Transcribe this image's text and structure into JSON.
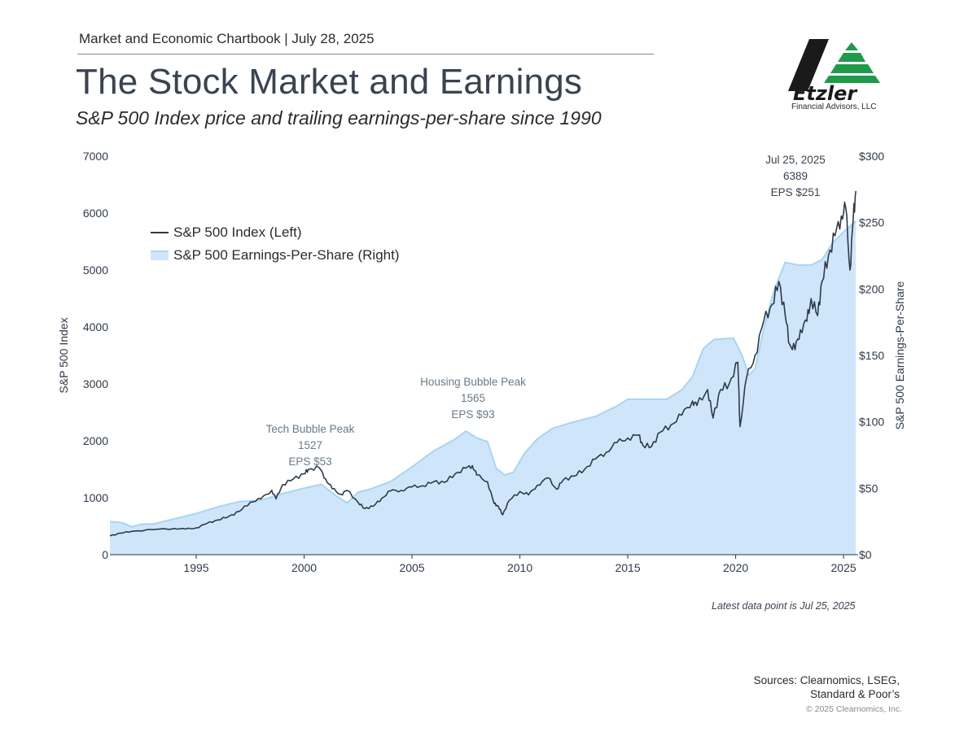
{
  "header": {
    "chartbook": "Market and Economic Chartbook | July 28, 2025",
    "title": "The Stock Market and Earnings",
    "subtitle": "S&P 500 Index price and trailing earnings-per-share since 1990"
  },
  "logo": {
    "name": "Etzler",
    "sub": "Financial Advisors, LLC",
    "colors": {
      "dark": "#1a1a1a",
      "green": "#1e9a4a"
    }
  },
  "footer": {
    "sources_line1": "Sources: Clearnomics, LSEG,",
    "sources_line2": "Standard & Poor’s",
    "copyright": "© 2025 Clearnomics, Inc.",
    "latest": "Latest data point is Jul 25, 2025"
  },
  "chart_data": {
    "type": "line",
    "title": "The Stock Market and Earnings",
    "ylabel_left": "S&P 500 Index",
    "ylabel_right": "S&P 500 Earnings-Per-Share",
    "xlim": [
      1991,
      2025.6
    ],
    "ylim_left": [
      0,
      7000
    ],
    "ylim_right": [
      0,
      300
    ],
    "grid": false,
    "legend_position": "top-left",
    "x_ticks": [
      1995,
      2000,
      2005,
      2010,
      2015,
      2020,
      2025
    ],
    "y_left_ticks": [
      0,
      1000,
      2000,
      3000,
      4000,
      5000,
      6000,
      7000
    ],
    "y_right_ticks": [
      "$0",
      "$50",
      "$100",
      "$150",
      "$200",
      "$250",
      "$300"
    ],
    "colors": {
      "index_line": "#2f3a48",
      "eps_fill": "#cfe6fa",
      "eps_edge": "#a8d4f5",
      "annotation": "#6b7a86"
    },
    "series": [
      {
        "name": "S&P 500 Index (Left)",
        "axis": "left",
        "points": [
          [
            1991.0,
            330
          ],
          [
            1991.5,
            380
          ],
          [
            1992.0,
            410
          ],
          [
            1993.0,
            440
          ],
          [
            1994.0,
            460
          ],
          [
            1994.5,
            450
          ],
          [
            1995.0,
            470
          ],
          [
            1995.5,
            550
          ],
          [
            1996.0,
            610
          ],
          [
            1996.5,
            670
          ],
          [
            1997.0,
            760
          ],
          [
            1997.5,
            920
          ],
          [
            1998.0,
            980
          ],
          [
            1998.5,
            1130
          ],
          [
            1998.7,
            980
          ],
          [
            1999.0,
            1230
          ],
          [
            1999.5,
            1330
          ],
          [
            2000.0,
            1420
          ],
          [
            2000.2,
            1500
          ],
          [
            2000.7,
            1527
          ],
          [
            2001.0,
            1330
          ],
          [
            2001.3,
            1160
          ],
          [
            2001.7,
            1060
          ],
          [
            2002.0,
            1130
          ],
          [
            2002.5,
            920
          ],
          [
            2002.8,
            810
          ],
          [
            2003.2,
            850
          ],
          [
            2003.6,
            990
          ],
          [
            2004.0,
            1120
          ],
          [
            2004.5,
            1130
          ],
          [
            2005.0,
            1190
          ],
          [
            2005.5,
            1210
          ],
          [
            2006.0,
            1280
          ],
          [
            2006.5,
            1270
          ],
          [
            2007.0,
            1420
          ],
          [
            2007.5,
            1520
          ],
          [
            2007.8,
            1565
          ],
          [
            2008.0,
            1400
          ],
          [
            2008.5,
            1280
          ],
          [
            2008.8,
            900
          ],
          [
            2009.0,
            850
          ],
          [
            2009.2,
            700
          ],
          [
            2009.5,
            950
          ],
          [
            2010.0,
            1110
          ],
          [
            2010.4,
            1050
          ],
          [
            2010.8,
            1220
          ],
          [
            2011.3,
            1350
          ],
          [
            2011.7,
            1150
          ],
          [
            2012.0,
            1310
          ],
          [
            2012.5,
            1380
          ],
          [
            2013.0,
            1500
          ],
          [
            2013.5,
            1680
          ],
          [
            2014.0,
            1800
          ],
          [
            2014.5,
            1970
          ],
          [
            2015.0,
            2050
          ],
          [
            2015.5,
            2100
          ],
          [
            2015.7,
            1920
          ],
          [
            2016.1,
            1900
          ],
          [
            2016.5,
            2150
          ],
          [
            2017.0,
            2280
          ],
          [
            2017.5,
            2450
          ],
          [
            2018.0,
            2700
          ],
          [
            2018.2,
            2620
          ],
          [
            2018.7,
            2900
          ],
          [
            2018.95,
            2400
          ],
          [
            2019.3,
            2900
          ],
          [
            2019.7,
            3000
          ],
          [
            2020.1,
            3380
          ],
          [
            2020.2,
            2250
          ],
          [
            2020.5,
            3100
          ],
          [
            2020.9,
            3500
          ],
          [
            2021.3,
            4100
          ],
          [
            2021.7,
            4400
          ],
          [
            2022.0,
            4800
          ],
          [
            2022.3,
            4200
          ],
          [
            2022.5,
            3700
          ],
          [
            2022.75,
            3600
          ],
          [
            2023.0,
            3950
          ],
          [
            2023.3,
            4100
          ],
          [
            2023.5,
            4500
          ],
          [
            2023.8,
            4200
          ],
          [
            2024.0,
            4800
          ],
          [
            2024.3,
            5250
          ],
          [
            2024.6,
            5600
          ],
          [
            2024.9,
            5950
          ],
          [
            2025.1,
            6100
          ],
          [
            2025.3,
            5000
          ],
          [
            2025.45,
            5900
          ],
          [
            2025.57,
            6389
          ]
        ]
      },
      {
        "name": "S&P 500 Earnings-Per-Share (Right)",
        "axis": "right",
        "points": [
          [
            1991.0,
            25
          ],
          [
            1991.6,
            24
          ],
          [
            1992.0,
            21
          ],
          [
            1992.5,
            23
          ],
          [
            1993.0,
            23
          ],
          [
            1994.0,
            27
          ],
          [
            1995.0,
            31
          ],
          [
            1996.0,
            36
          ],
          [
            1997.0,
            40
          ],
          [
            1998.0,
            41
          ],
          [
            1999.0,
            46
          ],
          [
            2000.0,
            50
          ],
          [
            2000.8,
            53
          ],
          [
            2001.5,
            44
          ],
          [
            2002.0,
            39
          ],
          [
            2002.5,
            47
          ],
          [
            2003.0,
            49
          ],
          [
            2004.0,
            55
          ],
          [
            2005.0,
            66
          ],
          [
            2006.0,
            78
          ],
          [
            2007.0,
            87
          ],
          [
            2007.5,
            93
          ],
          [
            2008.0,
            88
          ],
          [
            2008.5,
            85
          ],
          [
            2008.9,
            65
          ],
          [
            2009.3,
            60
          ],
          [
            2009.7,
            62
          ],
          [
            2010.2,
            76
          ],
          [
            2010.8,
            87
          ],
          [
            2011.5,
            95
          ],
          [
            2012.5,
            100
          ],
          [
            2013.5,
            104
          ],
          [
            2014.5,
            112
          ],
          [
            2015.0,
            117
          ],
          [
            2016.0,
            117
          ],
          [
            2016.8,
            117
          ],
          [
            2017.5,
            124
          ],
          [
            2018.0,
            134
          ],
          [
            2018.5,
            155
          ],
          [
            2019.0,
            162
          ],
          [
            2019.9,
            163
          ],
          [
            2020.3,
            150
          ],
          [
            2020.6,
            135
          ],
          [
            2020.9,
            140
          ],
          [
            2021.3,
            170
          ],
          [
            2021.8,
            200
          ],
          [
            2022.3,
            220
          ],
          [
            2022.9,
            218
          ],
          [
            2023.5,
            218
          ],
          [
            2024.0,
            222
          ],
          [
            2024.5,
            235
          ],
          [
            2025.0,
            243
          ],
          [
            2025.57,
            251
          ]
        ]
      }
    ],
    "annotations": [
      {
        "x": 2000.7,
        "lines": [
          "Tech Bubble Peak",
          "1527",
          "EPS $53"
        ]
      },
      {
        "x": 2007.8,
        "lines": [
          "Housing Bubble Peak",
          "1565",
          "EPS $93"
        ]
      },
      {
        "x": 2025.57,
        "lines": [
          "Jul 25, 2025",
          "6389",
          "EPS $251"
        ]
      }
    ]
  }
}
